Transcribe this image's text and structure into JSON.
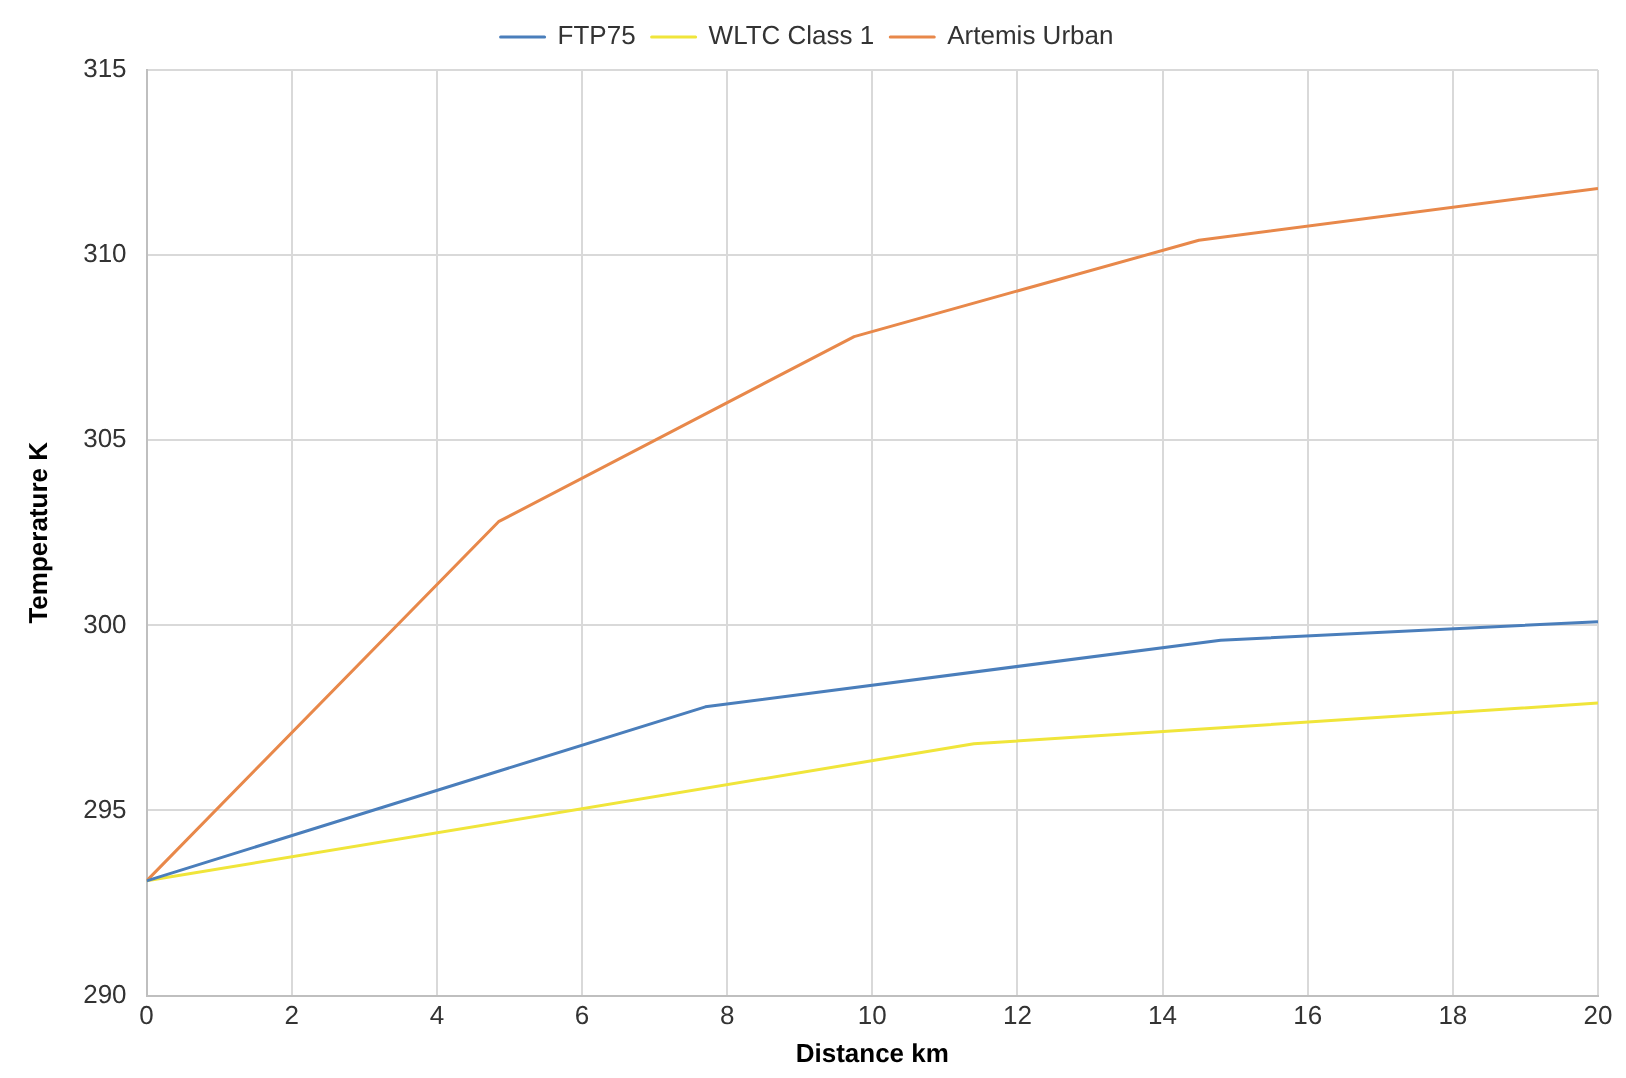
{
  "chart_data": {
    "type": "line",
    "xlabel": "Distance km",
    "ylabel": "Temperature K",
    "xlim": [
      0,
      20
    ],
    "xticks": [
      0,
      2,
      4,
      6,
      8,
      10,
      12,
      14,
      16,
      18,
      20
    ],
    "ylim": [
      290,
      315
    ],
    "yticks": [
      290,
      295,
      300,
      305,
      310,
      315
    ],
    "grid": true,
    "legend": "top",
    "marker": "none",
    "line_style": "solid",
    "series": [
      {
        "name": "FTP75",
        "color": "#4a7ebb",
        "x": [
          0,
          7.7,
          14.8,
          20
        ],
        "values": [
          293.1,
          297.8,
          299.6,
          300.1
        ]
      },
      {
        "name": "WLTC Class 1",
        "color": "#f0e53a",
        "x": [
          0,
          11.4,
          20
        ],
        "values": [
          293.1,
          296.8,
          297.9
        ]
      },
      {
        "name": "Artemis Urban",
        "color": "#e8884a",
        "x": [
          0,
          4.85,
          9.75,
          14.5,
          20
        ],
        "values": [
          293.1,
          302.8,
          307.8,
          310.4,
          311.8
        ]
      }
    ]
  }
}
